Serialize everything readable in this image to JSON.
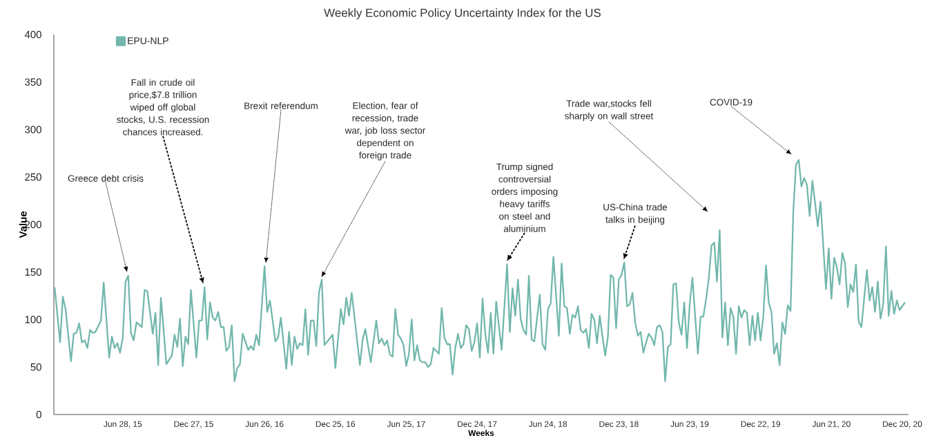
{
  "chart_data": {
    "type": "line",
    "title": "Weekly Economic Policy Uncertainty Index for the US",
    "xlabel": "Weeks",
    "ylabel": "Value",
    "xlim": [
      "2015-01-02",
      "2021-01-05"
    ],
    "ylim": [
      0,
      400
    ],
    "xticks": [
      {
        "value": "2015-06-28",
        "label": "Jun 28, 15"
      },
      {
        "value": "2015-12-27",
        "label": "Dec 27, 15"
      },
      {
        "value": "2016-06-26",
        "label": "Jun 26, 16"
      },
      {
        "value": "2016-12-25",
        "label": "Dec 25, 16"
      },
      {
        "value": "2017-06-25",
        "label": "Jun 25, 17"
      },
      {
        "value": "2017-12-24",
        "label": "Dec 24, 17"
      },
      {
        "value": "2018-06-24",
        "label": "Jun 24, 18"
      },
      {
        "value": "2018-12-23",
        "label": "Dec 23, 18"
      },
      {
        "value": "2019-06-23",
        "label": "Jun 23, 19"
      },
      {
        "value": "2019-12-22",
        "label": "Dec 22, 19"
      },
      {
        "value": "2020-06-21",
        "label": "Jun 21, 20"
      },
      {
        "value": "2020-12-20",
        "label": "Dec 20, 20"
      }
    ],
    "yticks": [
      0,
      50,
      100,
      150,
      200,
      250,
      300,
      350,
      400
    ],
    "legend": "top left",
    "annotations": [
      "Greece debt crisis",
      "Fall in crude oil price,$7.8 trillion wiped off global stocks, U.S. recession chances increased.",
      "Brexit referendum",
      "Election, fear of recession, trade war, job loss sector dependent on foreign trade",
      "Trump signed controversial orders imposing heavy tariffs on steel and aluminium",
      "US-China trade talks in beijing",
      "Trade war,stocks fell sharply on wall street",
      "COVID-19"
    ],
    "series": [
      {
        "name": "EPU-NLP",
        "color": "#72b7ac",
        "x": [
          "2015-01-04",
          "2015-01-18",
          "2015-01-25",
          "2015-02-01",
          "2015-02-15",
          "2015-02-22",
          "2015-03-01",
          "2015-03-08",
          "2015-03-15",
          "2015-03-22",
          "2015-03-29",
          "2015-04-05",
          "2015-04-12",
          "2015-04-19",
          "2015-05-03",
          "2015-05-10",
          "2015-05-24",
          "2015-05-31",
          "2015-06-07",
          "2015-06-14",
          "2015-06-21",
          "2015-06-28",
          "2015-07-05",
          "2015-07-12",
          "2015-07-19",
          "2015-07-26",
          "2015-08-02",
          "2015-08-16",
          "2015-08-23",
          "2015-08-30",
          "2015-09-13",
          "2015-09-20",
          "2015-09-27",
          "2015-10-04",
          "2015-10-18",
          "2015-11-01",
          "2015-11-08",
          "2015-11-15",
          "2015-11-22",
          "2015-11-29",
          "2015-12-06",
          "2015-12-13",
          "2015-12-20",
          "2016-01-03",
          "2016-01-10",
          "2016-01-17",
          "2016-01-24",
          "2016-01-31",
          "2016-02-07",
          "2016-02-14",
          "2016-02-21",
          "2016-02-28",
          "2016-03-06",
          "2016-03-13",
          "2016-03-20",
          "2016-03-27",
          "2016-04-03",
          "2016-04-10",
          "2016-04-17",
          "2016-04-24",
          "2016-05-01",
          "2016-05-15",
          "2016-05-22",
          "2016-05-29",
          "2016-06-05",
          "2016-06-12",
          "2016-06-19",
          "2016-06-26",
          "2016-07-03",
          "2016-07-10",
          "2016-07-24",
          "2016-07-31",
          "2016-08-07",
          "2016-08-21",
          "2016-08-28",
          "2016-09-04",
          "2016-09-11",
          "2016-09-18",
          "2016-09-25",
          "2016-10-02",
          "2016-10-09",
          "2016-10-16",
          "2016-10-23",
          "2016-10-30",
          "2016-11-06",
          "2016-11-13",
          "2016-11-20",
          "2016-11-27",
          "2016-12-18",
          "2016-12-25",
          "2017-01-08",
          "2017-01-15",
          "2017-01-22",
          "2017-01-29",
          "2017-02-05",
          "2017-02-26",
          "2017-03-05",
          "2017-03-12",
          "2017-03-26",
          "2017-04-09",
          "2017-04-16",
          "2017-04-23",
          "2017-04-30",
          "2017-05-07",
          "2017-05-14",
          "2017-05-21",
          "2017-05-28",
          "2017-06-04",
          "2017-06-11",
          "2017-06-18",
          "2017-06-25",
          "2017-07-02",
          "2017-07-09",
          "2017-07-16",
          "2017-07-23",
          "2017-07-30",
          "2017-08-06",
          "2017-08-13",
          "2017-08-20",
          "2017-08-27",
          "2017-09-03",
          "2017-09-17",
          "2017-09-24",
          "2017-10-01",
          "2017-10-08",
          "2017-10-15",
          "2017-10-22",
          "2017-10-29",
          "2017-11-05",
          "2017-11-12",
          "2017-11-19",
          "2017-11-26",
          "2017-12-03",
          "2017-12-10",
          "2017-12-17",
          "2017-12-24",
          "2017-12-31",
          "2018-01-07",
          "2018-01-14",
          "2018-01-21",
          "2018-01-28",
          "2018-02-04",
          "2018-02-11",
          "2018-02-25",
          "2018-03-11",
          "2018-03-18",
          "2018-03-25",
          "2018-04-01",
          "2018-04-08",
          "2018-04-15",
          "2018-04-22",
          "2018-04-29",
          "2018-05-06",
          "2018-05-13",
          "2018-05-20",
          "2018-06-03",
          "2018-06-10",
          "2018-06-17",
          "2018-06-24",
          "2018-07-01",
          "2018-07-08",
          "2018-07-22",
          "2018-07-29",
          "2018-08-05",
          "2018-08-12",
          "2018-08-19",
          "2018-08-26",
          "2018-09-02",
          "2018-09-09",
          "2018-09-16",
          "2018-09-23",
          "2018-09-30",
          "2018-10-07",
          "2018-10-14",
          "2018-10-21",
          "2018-10-28",
          "2018-11-04",
          "2018-11-11",
          "2018-11-18",
          "2018-11-25",
          "2018-12-02",
          "2018-12-09",
          "2018-12-16",
          "2018-12-23",
          "2018-12-30",
          "2019-01-06",
          "2019-01-13",
          "2019-01-20",
          "2019-01-27",
          "2019-02-03",
          "2019-02-10",
          "2019-02-17",
          "2019-02-24",
          "2019-03-03",
          "2019-03-10",
          "2019-03-17",
          "2019-03-24",
          "2019-03-31",
          "2019-04-07",
          "2019-04-14",
          "2019-04-21",
          "2019-04-28",
          "2019-05-05",
          "2019-05-12",
          "2019-05-19",
          "2019-05-26",
          "2019-06-02",
          "2019-06-09",
          "2019-06-16",
          "2019-06-23",
          "2019-06-30",
          "2019-07-07",
          "2019-07-14",
          "2019-07-21",
          "2019-07-28",
          "2019-08-04",
          "2019-08-11",
          "2019-08-18",
          "2019-08-25",
          "2019-09-01",
          "2019-09-08",
          "2019-09-15",
          "2019-09-22",
          "2019-09-29",
          "2019-10-06",
          "2019-10-13",
          "2019-10-20",
          "2019-10-27",
          "2019-11-03",
          "2019-11-10",
          "2019-11-17",
          "2019-11-24",
          "2019-12-01",
          "2019-12-08",
          "2019-12-15",
          "2019-12-22",
          "2019-12-29",
          "2020-01-05",
          "2020-01-12",
          "2020-01-19",
          "2020-01-26",
          "2020-02-02",
          "2020-02-09",
          "2020-02-16",
          "2020-02-23",
          "2020-03-01",
          "2020-03-08",
          "2020-03-15",
          "2020-03-22",
          "2020-03-29",
          "2020-04-05",
          "2020-04-12",
          "2020-04-19",
          "2020-04-26",
          "2020-05-03",
          "2020-05-10",
          "2020-05-17",
          "2020-05-24",
          "2020-06-07",
          "2020-06-14",
          "2020-06-21",
          "2020-06-28",
          "2020-07-05",
          "2020-07-12",
          "2020-07-19",
          "2020-07-26",
          "2020-08-02",
          "2020-08-09",
          "2020-08-16",
          "2020-08-23",
          "2020-08-30",
          "2020-09-06",
          "2020-09-20",
          "2020-09-27",
          "2020-10-04",
          "2020-10-11",
          "2020-10-18",
          "2020-10-25",
          "2020-11-01",
          "2020-11-08",
          "2020-11-15",
          "2020-11-22",
          "2020-11-29",
          "2020-12-06",
          "2020-12-13",
          "2020-12-27"
        ],
        "values": [
          134,
          76,
          124,
          111,
          56,
          85,
          86,
          96,
          76,
          78,
          70,
          89,
          86,
          87,
          99,
          139,
          60,
          82,
          70,
          75,
          65,
          81,
          140,
          146,
          86,
          78,
          97,
          92,
          131,
          130,
          85,
          107,
          52,
          123,
          53,
          62,
          84,
          71,
          101,
          51,
          82,
          74,
          131,
          60,
          99,
          99,
          134,
          79,
          118,
          102,
          99,
          108,
          92,
          92,
          67,
          71,
          94,
          35,
          49,
          53,
          85,
          68,
          72,
          68,
          84,
          73,
          114,
          156,
          108,
          120,
          77,
          81,
          102,
          48,
          87,
          52,
          82,
          69,
          75,
          73,
          111,
          63,
          99,
          99,
          72,
          129,
          142,
          73,
          84,
          49,
          111,
          95,
          123,
          104,
          128,
          52,
          79,
          90,
          55,
          99,
          75,
          80,
          73,
          78,
          63,
          61,
          111,
          84,
          80,
          73,
          51,
          64,
          100,
          57,
          73,
          57,
          55,
          55,
          50,
          53,
          70,
          64,
          112,
          81,
          74,
          74,
          42,
          70,
          85,
          70,
          74,
          94,
          90,
          67,
          76,
          96,
          60,
          122,
          85,
          65,
          107,
          64,
          119,
          68,
          158,
          87,
          133,
          104,
          142,
          100,
          89,
          84,
          146,
          79,
          77,
          126,
          74,
          68,
          111,
          117,
          166,
          83,
          159,
          114,
          112,
          85,
          105,
          102,
          114,
          89,
          86,
          90,
          70,
          106,
          100,
          75,
          104,
          82,
          62,
          82,
          147,
          144,
          91,
          142,
          147,
          160,
          114,
          116,
          128,
          97,
          83,
          87,
          65,
          76,
          85,
          81,
          73,
          92,
          94,
          87,
          35,
          71,
          74,
          137,
          138,
          97,
          84,
          118,
          70,
          116,
          144,
          104,
          64,
          103,
          103,
          121,
          143,
          178,
          181,
          140,
          194,
          81,
          118,
          73,
          112,
          103,
          64,
          114,
          102,
          110,
          107,
          73,
          104,
          78,
          107,
          78,
          103,
          157,
          118,
          108,
          64,
          75,
          52,
          97,
          85,
          115,
          109,
          213,
          263,
          268,
          240,
          249,
          242,
          209,
          246,
          223,
          198,
          224,
          132,
          175,
          122,
          165,
          155,
          137,
          170,
          159,
          113,
          137,
          129,
          158,
          98,
          92,
          152,
          120,
          134,
          108,
          140,
          101,
          116,
          177,
          104,
          130,
          106,
          120,
          110,
          118
        ]
      }
    ]
  }
}
